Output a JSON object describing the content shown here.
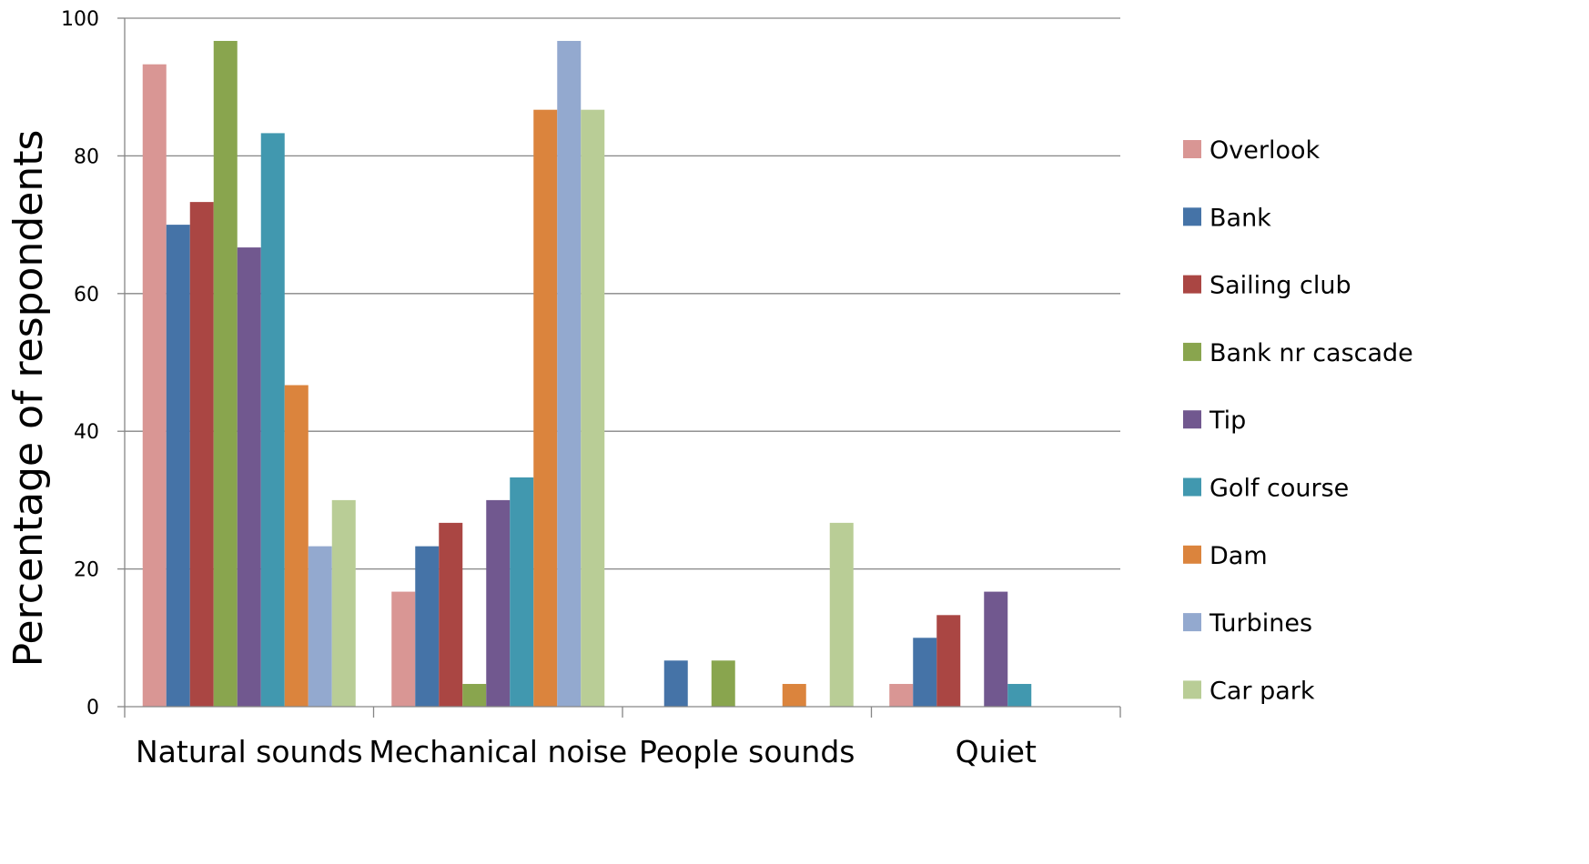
{
  "chart_data": {
    "type": "bar",
    "title": "",
    "xlabel": "",
    "ylabel": "Percentage of respondents",
    "ylim": [
      0,
      100
    ],
    "yticks": [
      0,
      20,
      40,
      60,
      80,
      100
    ],
    "grid": true,
    "legend_position": "right",
    "categories": [
      "Natural sounds",
      "Mechanical noise",
      "People sounds",
      "Quiet"
    ],
    "series": [
      {
        "name": "Overlook",
        "color": "#D99694",
        "values": [
          93.3,
          16.7,
          0,
          3.3
        ]
      },
      {
        "name": "Bank",
        "color": "#4573A7",
        "values": [
          70,
          23.3,
          6.7,
          10
        ]
      },
      {
        "name": "Sailing club",
        "color": "#AA4643",
        "values": [
          73.3,
          26.7,
          0,
          13.3
        ]
      },
      {
        "name": "Bank nr cascade",
        "color": "#89A54E",
        "values": [
          96.7,
          3.3,
          6.7,
          0
        ]
      },
      {
        "name": "Tip",
        "color": "#71588F",
        "values": [
          66.7,
          30,
          0,
          16.7
        ]
      },
      {
        "name": "Golf course",
        "color": "#4198AF",
        "values": [
          83.3,
          33.3,
          0,
          3.3
        ]
      },
      {
        "name": "Dam",
        "color": "#DB843D",
        "values": [
          46.7,
          86.7,
          3.3,
          0
        ]
      },
      {
        "name": "Turbines",
        "color": "#93A9CF",
        "values": [
          23.3,
          96.7,
          0,
          0
        ]
      },
      {
        "name": "Car park",
        "color": "#B9CD96",
        "values": [
          30,
          86.7,
          26.7,
          0
        ]
      }
    ]
  }
}
